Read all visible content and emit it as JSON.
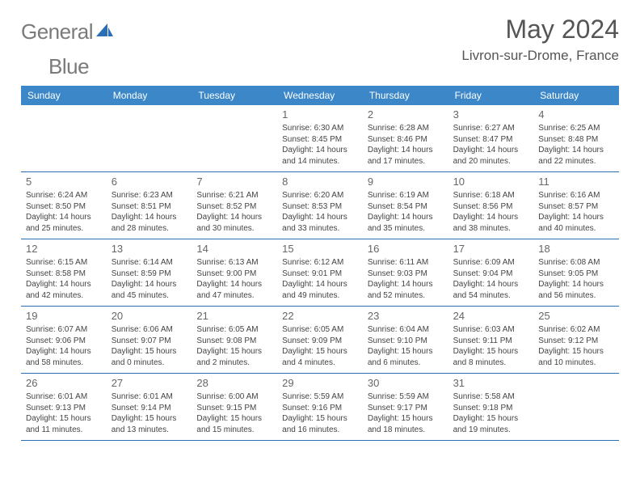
{
  "brand": {
    "word1": "General",
    "word2": "Blue"
  },
  "header": {
    "title": "May 2024",
    "location": "Livron-sur-Drome, France"
  },
  "dayNames": [
    "Sunday",
    "Monday",
    "Tuesday",
    "Wednesday",
    "Thursday",
    "Friday",
    "Saturday"
  ],
  "colors": {
    "header_bg": "#3b87c8",
    "header_text": "#ffffff",
    "border": "#2a6fb5",
    "logo_gray": "#7a7a7a",
    "logo_blue": "#2a6fb5",
    "title_color": "#555555",
    "cell_text": "#444444",
    "daynum_color": "#666666",
    "background": "#ffffff"
  },
  "fonts": {
    "title_size": 32,
    "subtitle_size": 17,
    "dayheader_size": 12,
    "daynum_size": 13,
    "info_size": 10,
    "family": "Arial"
  },
  "layout": {
    "columns": 7,
    "rows": 5,
    "cell_min_height": 78
  },
  "weeks": [
    [
      {
        "n": "",
        "sr": "",
        "ss": "",
        "dl": ""
      },
      {
        "n": "",
        "sr": "",
        "ss": "",
        "dl": ""
      },
      {
        "n": "",
        "sr": "",
        "ss": "",
        "dl": ""
      },
      {
        "n": "1",
        "sr": "Sunrise: 6:30 AM",
        "ss": "Sunset: 8:45 PM",
        "dl": "Daylight: 14 hours and 14 minutes."
      },
      {
        "n": "2",
        "sr": "Sunrise: 6:28 AM",
        "ss": "Sunset: 8:46 PM",
        "dl": "Daylight: 14 hours and 17 minutes."
      },
      {
        "n": "3",
        "sr": "Sunrise: 6:27 AM",
        "ss": "Sunset: 8:47 PM",
        "dl": "Daylight: 14 hours and 20 minutes."
      },
      {
        "n": "4",
        "sr": "Sunrise: 6:25 AM",
        "ss": "Sunset: 8:48 PM",
        "dl": "Daylight: 14 hours and 22 minutes."
      }
    ],
    [
      {
        "n": "5",
        "sr": "Sunrise: 6:24 AM",
        "ss": "Sunset: 8:50 PM",
        "dl": "Daylight: 14 hours and 25 minutes."
      },
      {
        "n": "6",
        "sr": "Sunrise: 6:23 AM",
        "ss": "Sunset: 8:51 PM",
        "dl": "Daylight: 14 hours and 28 minutes."
      },
      {
        "n": "7",
        "sr": "Sunrise: 6:21 AM",
        "ss": "Sunset: 8:52 PM",
        "dl": "Daylight: 14 hours and 30 minutes."
      },
      {
        "n": "8",
        "sr": "Sunrise: 6:20 AM",
        "ss": "Sunset: 8:53 PM",
        "dl": "Daylight: 14 hours and 33 minutes."
      },
      {
        "n": "9",
        "sr": "Sunrise: 6:19 AM",
        "ss": "Sunset: 8:54 PM",
        "dl": "Daylight: 14 hours and 35 minutes."
      },
      {
        "n": "10",
        "sr": "Sunrise: 6:18 AM",
        "ss": "Sunset: 8:56 PM",
        "dl": "Daylight: 14 hours and 38 minutes."
      },
      {
        "n": "11",
        "sr": "Sunrise: 6:16 AM",
        "ss": "Sunset: 8:57 PM",
        "dl": "Daylight: 14 hours and 40 minutes."
      }
    ],
    [
      {
        "n": "12",
        "sr": "Sunrise: 6:15 AM",
        "ss": "Sunset: 8:58 PM",
        "dl": "Daylight: 14 hours and 42 minutes."
      },
      {
        "n": "13",
        "sr": "Sunrise: 6:14 AM",
        "ss": "Sunset: 8:59 PM",
        "dl": "Daylight: 14 hours and 45 minutes."
      },
      {
        "n": "14",
        "sr": "Sunrise: 6:13 AM",
        "ss": "Sunset: 9:00 PM",
        "dl": "Daylight: 14 hours and 47 minutes."
      },
      {
        "n": "15",
        "sr": "Sunrise: 6:12 AM",
        "ss": "Sunset: 9:01 PM",
        "dl": "Daylight: 14 hours and 49 minutes."
      },
      {
        "n": "16",
        "sr": "Sunrise: 6:11 AM",
        "ss": "Sunset: 9:03 PM",
        "dl": "Daylight: 14 hours and 52 minutes."
      },
      {
        "n": "17",
        "sr": "Sunrise: 6:09 AM",
        "ss": "Sunset: 9:04 PM",
        "dl": "Daylight: 14 hours and 54 minutes."
      },
      {
        "n": "18",
        "sr": "Sunrise: 6:08 AM",
        "ss": "Sunset: 9:05 PM",
        "dl": "Daylight: 14 hours and 56 minutes."
      }
    ],
    [
      {
        "n": "19",
        "sr": "Sunrise: 6:07 AM",
        "ss": "Sunset: 9:06 PM",
        "dl": "Daylight: 14 hours and 58 minutes."
      },
      {
        "n": "20",
        "sr": "Sunrise: 6:06 AM",
        "ss": "Sunset: 9:07 PM",
        "dl": "Daylight: 15 hours and 0 minutes."
      },
      {
        "n": "21",
        "sr": "Sunrise: 6:05 AM",
        "ss": "Sunset: 9:08 PM",
        "dl": "Daylight: 15 hours and 2 minutes."
      },
      {
        "n": "22",
        "sr": "Sunrise: 6:05 AM",
        "ss": "Sunset: 9:09 PM",
        "dl": "Daylight: 15 hours and 4 minutes."
      },
      {
        "n": "23",
        "sr": "Sunrise: 6:04 AM",
        "ss": "Sunset: 9:10 PM",
        "dl": "Daylight: 15 hours and 6 minutes."
      },
      {
        "n": "24",
        "sr": "Sunrise: 6:03 AM",
        "ss": "Sunset: 9:11 PM",
        "dl": "Daylight: 15 hours and 8 minutes."
      },
      {
        "n": "25",
        "sr": "Sunrise: 6:02 AM",
        "ss": "Sunset: 9:12 PM",
        "dl": "Daylight: 15 hours and 10 minutes."
      }
    ],
    [
      {
        "n": "26",
        "sr": "Sunrise: 6:01 AM",
        "ss": "Sunset: 9:13 PM",
        "dl": "Daylight: 15 hours and 11 minutes."
      },
      {
        "n": "27",
        "sr": "Sunrise: 6:01 AM",
        "ss": "Sunset: 9:14 PM",
        "dl": "Daylight: 15 hours and 13 minutes."
      },
      {
        "n": "28",
        "sr": "Sunrise: 6:00 AM",
        "ss": "Sunset: 9:15 PM",
        "dl": "Daylight: 15 hours and 15 minutes."
      },
      {
        "n": "29",
        "sr": "Sunrise: 5:59 AM",
        "ss": "Sunset: 9:16 PM",
        "dl": "Daylight: 15 hours and 16 minutes."
      },
      {
        "n": "30",
        "sr": "Sunrise: 5:59 AM",
        "ss": "Sunset: 9:17 PM",
        "dl": "Daylight: 15 hours and 18 minutes."
      },
      {
        "n": "31",
        "sr": "Sunrise: 5:58 AM",
        "ss": "Sunset: 9:18 PM",
        "dl": "Daylight: 15 hours and 19 minutes."
      },
      {
        "n": "",
        "sr": "",
        "ss": "",
        "dl": ""
      }
    ]
  ]
}
